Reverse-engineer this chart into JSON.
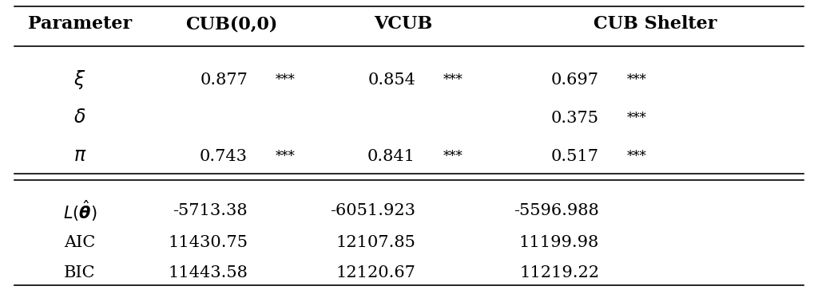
{
  "col_headers": [
    "Parameter",
    "CUB(0,0)",
    "VCUB",
    "CUB Shelter"
  ],
  "rows_upper": [
    {
      "param": "$\\xi$",
      "cub_val": "0.877",
      "cub_sig": "***",
      "vcub_val": "0.854",
      "vcub_sig": "***",
      "shelter_val": "0.697",
      "shelter_sig": "***"
    },
    {
      "param": "$\\delta$",
      "cub_val": "",
      "cub_sig": "",
      "vcub_val": "",
      "vcub_sig": "",
      "shelter_val": "0.375",
      "shelter_sig": "***"
    },
    {
      "param": "$\\pi$",
      "cub_val": "0.743",
      "cub_sig": "***",
      "vcub_val": "0.841",
      "vcub_sig": "***",
      "shelter_val": "0.517",
      "shelter_sig": "***"
    }
  ],
  "rows_lower": [
    {
      "param": "$L(\\hat{\\boldsymbol{\\theta}})$",
      "param_italic": true,
      "cub_val": "-5713.38",
      "vcub_val": "-6051.923",
      "shelter_val": "-5596.988"
    },
    {
      "param": "AIC",
      "param_italic": false,
      "cub_val": "11430.75",
      "vcub_val": "12107.85",
      "shelter_val": "11199.98"
    },
    {
      "param": "BIC",
      "param_italic": false,
      "cub_val": "11443.58",
      "vcub_val": "12120.67",
      "shelter_val": "11219.22"
    }
  ],
  "bg_color": "#ffffff",
  "text_color": "#000000",
  "header_fontsize": 16,
  "cell_fontsize": 15,
  "sig_fontsize": 12,
  "figsize": [
    10.24,
    3.64
  ],
  "dpi": 100
}
